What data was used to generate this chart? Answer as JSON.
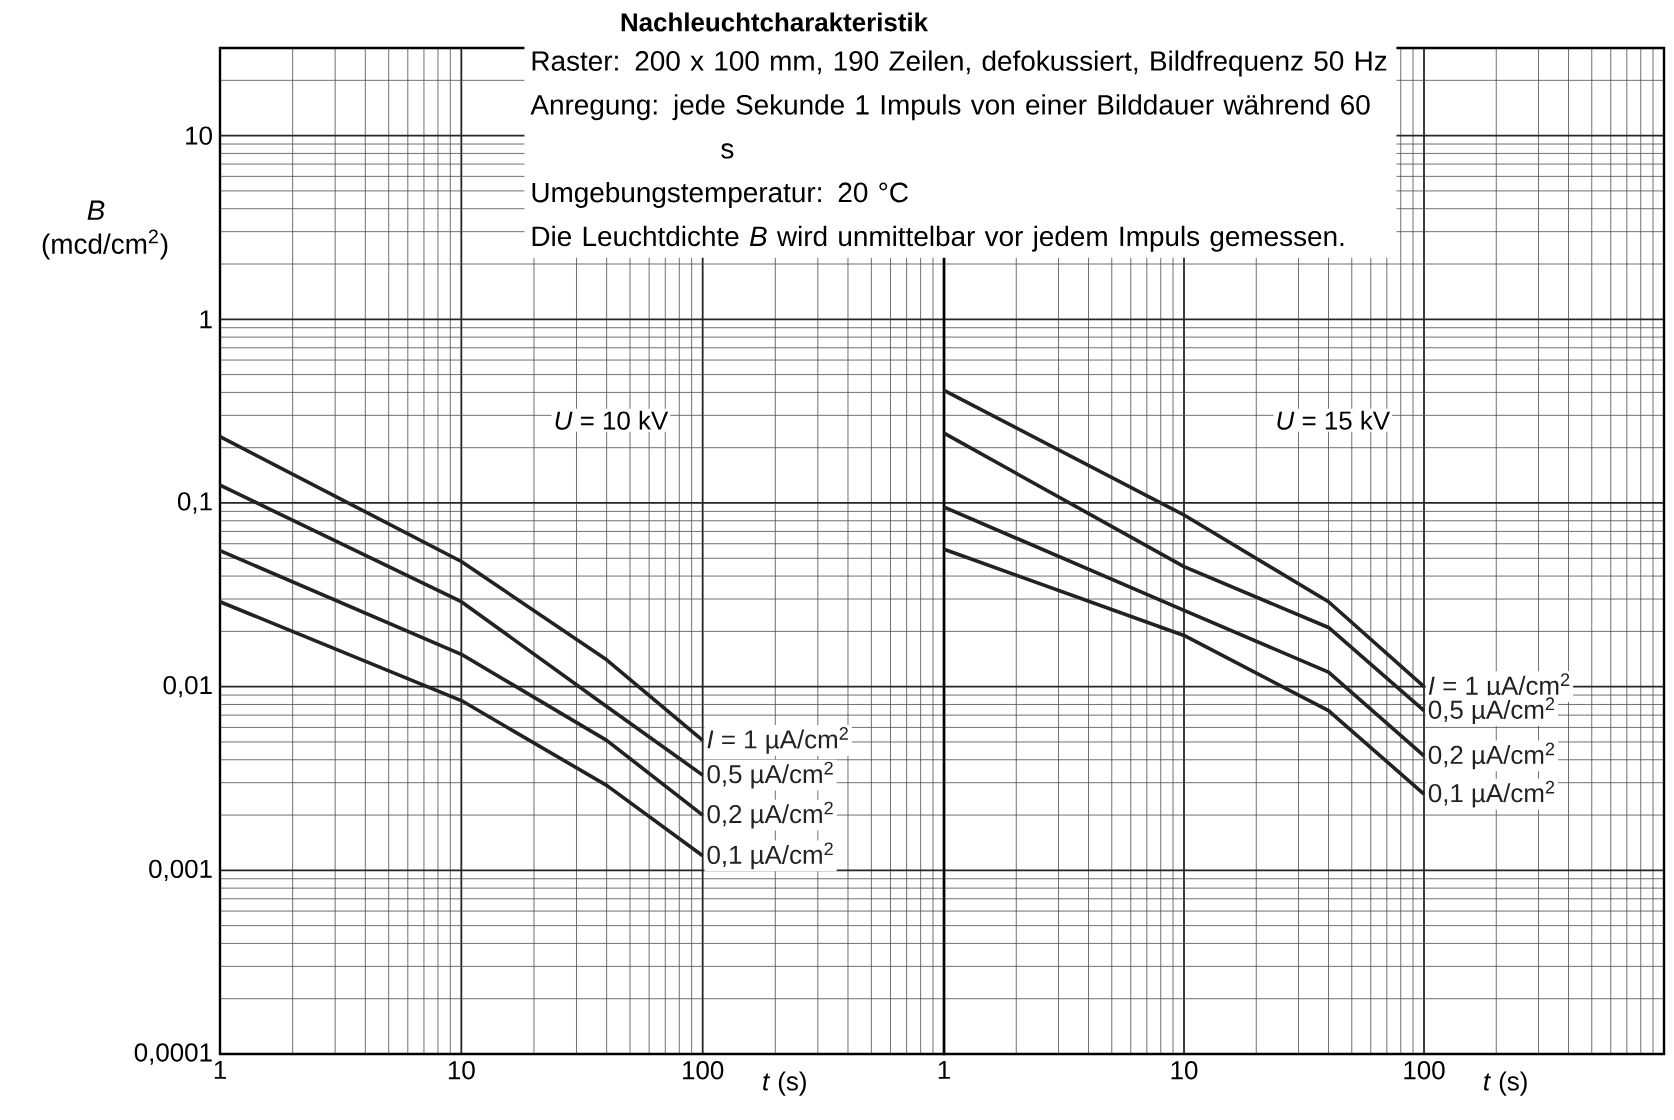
{
  "chart_data": [
    {
      "type": "line",
      "title": "Nachleuchtcharakteristik",
      "xlabel": "*t* (s)",
      "ylabel": "*B* (mcd/cm$^{2}$)",
      "log": "xy",
      "grid": true,
      "xlim": [
        1,
        1000
      ],
      "ylim": [
        0.0001,
        30
      ],
      "xticks": [
        1,
        10,
        100
      ],
      "yticks": [
        {
          "value": 0.0001,
          "label": "0,0001"
        },
        {
          "value": 0.001,
          "label": "0,001"
        },
        {
          "value": 0.01,
          "label": "0,01"
        },
        {
          "value": 0.1,
          "label": "0,1"
        },
        1,
        10
      ],
      "annotations": [
        "Raster: 200 x 100 mm, 190 Zeilen, defokussiert, Bildfrequenz 50 Hz",
        "Anregung: jede Sekunde 1 Impuls von einer Bilddauer während 60 s",
        "Umgebungstemperatur: 20 °C",
        "Die Leuchtdichte *B* wird unmittelbar vor jedem Impuls gemessen.",
        "*U* = 10 kV"
      ],
      "x": [
        1,
        10,
        40,
        100
      ],
      "series": [
        {
          "name": "*I* = 1 µA/cm$^{2}$",
          "color": "#222222",
          "values": [
            0.23,
            0.048,
            0.014,
            0.0051
          ]
        },
        {
          "name": "0,5 µA/cm$^{2}$",
          "color": "#222222",
          "values": [
            0.125,
            0.029,
            0.0078,
            0.0033
          ]
        },
        {
          "name": "0,2 µA/cm$^{2}$",
          "color": "#222222",
          "values": [
            0.055,
            0.015,
            0.0051,
            0.002
          ]
        },
        {
          "name": "0,1 µA/cm$^{2}$",
          "color": "#222222",
          "values": [
            0.029,
            0.0084,
            0.0029,
            0.0012
          ]
        }
      ]
    },
    {
      "type": "line",
      "xlabel": "*t* (s)",
      "log": "xy",
      "grid": true,
      "tick_labels": "x",
      "xlim": [
        1,
        1000
      ],
      "ylim": [
        0.0001,
        30
      ],
      "xticks": [
        1,
        10,
        100
      ],
      "yticks": [
        0.0001,
        0.001,
        0.01,
        0.1,
        1,
        10
      ],
      "annotations": [
        "*U* = 15 kV"
      ],
      "x": [
        1,
        10,
        40,
        100
      ],
      "series": [
        {
          "name": "*I* = 1 µA/cm$^{2}$",
          "color": "#222222",
          "values": [
            0.41,
            0.086,
            0.029,
            0.01
          ]
        },
        {
          "name": "0,5 µA/cm$^{2}$",
          "color": "#222222",
          "values": [
            0.24,
            0.045,
            0.021,
            0.0074
          ]
        },
        {
          "name": "0,2 µA/cm$^{2}$",
          "color": "#222222",
          "values": [
            0.095,
            0.026,
            0.012,
            0.0042
          ]
        },
        {
          "name": "0,1 µA/cm$^{2}$",
          "color": "#222222",
          "values": [
            0.056,
            0.019,
            0.0074,
            0.0026
          ]
        }
      ]
    }
  ]
}
